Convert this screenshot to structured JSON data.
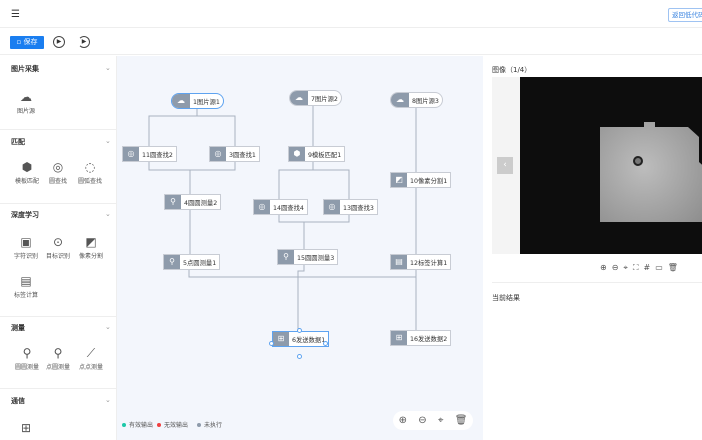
{
  "header": {
    "menu_icon": "menu-fold-icon",
    "back_button": "返回低代码"
  },
  "toolbar": {
    "save": "保存",
    "run_icon": "play-circle-icon",
    "run_once_icon": "replay-icon"
  },
  "sidebar": {
    "sections": [
      {
        "title": "图片采集",
        "items": [
          {
            "label": "图片源",
            "icon": "cloud-image-icon"
          }
        ]
      },
      {
        "title": "匹配",
        "items": [
          {
            "label": "模板匹配",
            "icon": "cube-icon"
          },
          {
            "label": "圆查找",
            "icon": "circle-search-icon"
          },
          {
            "label": "圆弧查找",
            "icon": "arc-search-icon"
          }
        ]
      },
      {
        "title": "深度学习",
        "items": [
          {
            "label": "字符识别",
            "icon": "ocr-icon"
          },
          {
            "label": "目标识别",
            "icon": "target-icon"
          },
          {
            "label": "像素分割",
            "icon": "segment-icon"
          },
          {
            "label": "标签计算",
            "icon": "label-calc-icon"
          }
        ]
      },
      {
        "title": "测量",
        "items": [
          {
            "label": "圆圆测量",
            "icon": "circle-circle-measure-icon"
          },
          {
            "label": "点圆测量",
            "icon": "point-circle-measure-icon"
          },
          {
            "label": "点点测量",
            "icon": "point-point-measure-icon"
          }
        ]
      },
      {
        "title": "通信",
        "items": [
          {
            "label": "",
            "icon": "send-data-icon"
          }
        ]
      }
    ]
  },
  "canvas": {
    "nodes": [
      {
        "id": "n1",
        "label": "1图片源1",
        "type": "source",
        "selected": true
      },
      {
        "id": "n7",
        "label": "7图片源2",
        "type": "source"
      },
      {
        "id": "n8",
        "label": "8图片源3",
        "type": "source"
      },
      {
        "id": "n11",
        "label": "11圆查找2",
        "type": "circle"
      },
      {
        "id": "n3",
        "label": "3圆查找1",
        "type": "circle"
      },
      {
        "id": "n9",
        "label": "9模板匹配1",
        "type": "template"
      },
      {
        "id": "n4",
        "label": "4圆圆测量2",
        "type": "measure"
      },
      {
        "id": "n14",
        "label": "14圆查找4",
        "type": "circle"
      },
      {
        "id": "n13",
        "label": "13圆查找3",
        "type": "circle"
      },
      {
        "id": "n10",
        "label": "10像素分割1",
        "type": "segment"
      },
      {
        "id": "n5",
        "label": "5点圆测量1",
        "type": "measure"
      },
      {
        "id": "n15",
        "label": "15圆圆测量3",
        "type": "measure"
      },
      {
        "id": "n12",
        "label": "12标签计算1",
        "type": "label"
      },
      {
        "id": "n6",
        "label": "6发送数据1",
        "type": "send",
        "selected": true
      },
      {
        "id": "n16",
        "label": "16发送数据2",
        "type": "send"
      }
    ],
    "legend": [
      {
        "label": "有效输出",
        "color": "#1cc8a8"
      },
      {
        "label": "无效输出",
        "color": "#f04040"
      },
      {
        "label": "未执行",
        "color": "#8e9bab"
      }
    ],
    "zoom_controls": [
      "zoom-in-icon",
      "zoom-out-icon",
      "locate-icon",
      "delete-icon"
    ]
  },
  "panel": {
    "image_title": "图像（1/4）",
    "result_title": "当前结果",
    "image_tools": [
      "zoom-in-icon",
      "zoom-out-icon",
      "locate-icon",
      "fullscreen-icon",
      "grid-icon",
      "image-icon",
      "delete-icon"
    ]
  }
}
